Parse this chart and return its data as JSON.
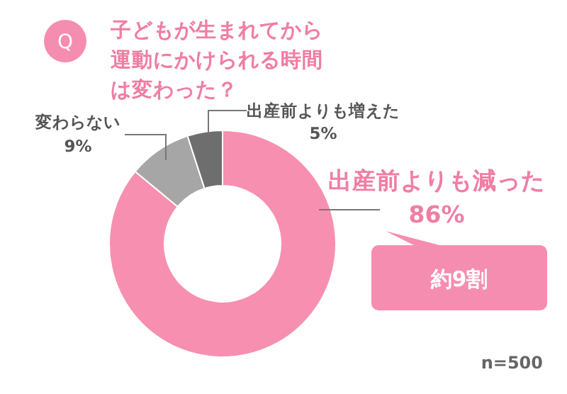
{
  "chart_data": {
    "type": "donut",
    "title": "子どもが生まれてから運動にかけられる時間は変わった？",
    "categories": [
      "出産前よりも減った",
      "変わらない",
      "出産前よりも増えた"
    ],
    "values": [
      86,
      9,
      5
    ],
    "colors": [
      "#f78fb0",
      "#a6a6a6",
      "#6e6e6e"
    ],
    "value_labels": [
      "86%",
      "9%",
      "5%"
    ],
    "annotations": [
      "Q",
      "約9割",
      "n=500"
    ]
  }
}
